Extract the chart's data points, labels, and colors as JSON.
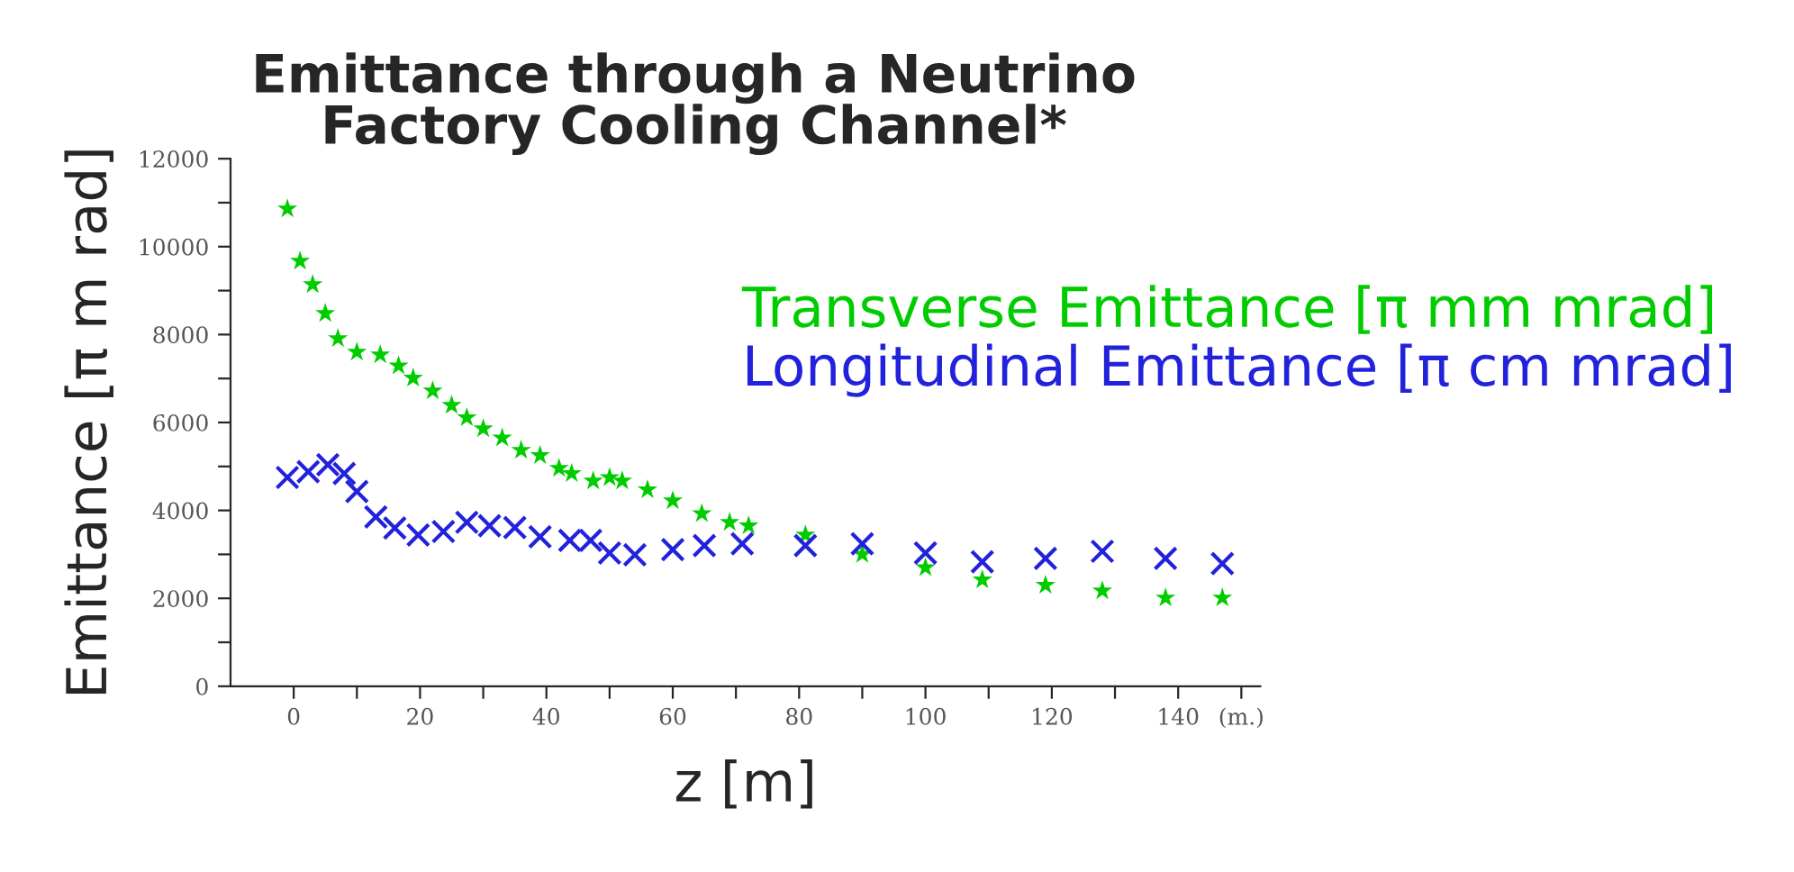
{
  "chart_data": {
    "type": "scatter",
    "title": "Emittance through a Neutrino\nFactory Cooling Channel*",
    "xlabel": "z [m]",
    "ylabel": "Emittance [π m rad]",
    "xlim": [
      -10,
      153
    ],
    "ylim": [
      0,
      12000
    ],
    "xticks": [
      0,
      {
        "value": 10,
        "label": null
      },
      20,
      {
        "value": 30,
        "label": null
      },
      40,
      {
        "value": 50,
        "label": null
      },
      60,
      {
        "value": 70,
        "label": null
      },
      80,
      {
        "value": 90,
        "label": null
      },
      100,
      {
        "value": 110,
        "label": null
      },
      120,
      {
        "value": 130,
        "label": null
      },
      140,
      {
        "value": 150,
        "label": "(m.)"
      }
    ],
    "yticks": [
      0,
      {
        "value": 1000,
        "label": null
      },
      2000,
      {
        "value": 3000,
        "label": null
      },
      4000,
      {
        "value": 5000,
        "label": null
      },
      6000,
      {
        "value": 7000,
        "label": null
      },
      8000,
      {
        "value": 9000,
        "label": null
      },
      10000,
      {
        "value": 11000,
        "label": null
      },
      12000
    ],
    "grid": false,
    "legend": "top right",
    "series": [
      {
        "name": "Transverse Emittance [π mm mrad]",
        "color": "#00cc00",
        "marker": "star",
        "x": [
          -1,
          1,
          3,
          5,
          7,
          10,
          13.7,
          16.6,
          18.9,
          22,
          25,
          27.4,
          30,
          33,
          36,
          39,
          42,
          44,
          47.4,
          50,
          52,
          56,
          60,
          64.6,
          69,
          72,
          81,
          90,
          100,
          109,
          119,
          128,
          138,
          147
        ],
        "values": [
          10860,
          9670,
          9140,
          8480,
          7910,
          7600,
          7540,
          7290,
          7010,
          6720,
          6390,
          6110,
          5860,
          5650,
          5370,
          5250,
          4960,
          4840,
          4670,
          4750,
          4670,
          4470,
          4220,
          3930,
          3730,
          3650,
          3440,
          3000,
          2700,
          2420,
          2300,
          2170,
          2010,
          2010
        ]
      },
      {
        "name": "Longitudinal Emittance [π cm mrad]",
        "color": "#2222dd",
        "marker": "cross",
        "x": [
          -1,
          2.3,
          5.4,
          8,
          10,
          13,
          16,
          19.7,
          23.7,
          27.4,
          31,
          35,
          39,
          43.7,
          47,
          50,
          54,
          60,
          65,
          71,
          81,
          90,
          100,
          109,
          119,
          128,
          138,
          147
        ],
        "values": [
          4750,
          4880,
          5040,
          4840,
          4430,
          3850,
          3600,
          3440,
          3520,
          3730,
          3650,
          3610,
          3400,
          3320,
          3320,
          3030,
          2990,
          3110,
          3200,
          3240,
          3200,
          3240,
          3030,
          2830,
          2910,
          3070,
          2910,
          2790
        ]
      }
    ]
  }
}
